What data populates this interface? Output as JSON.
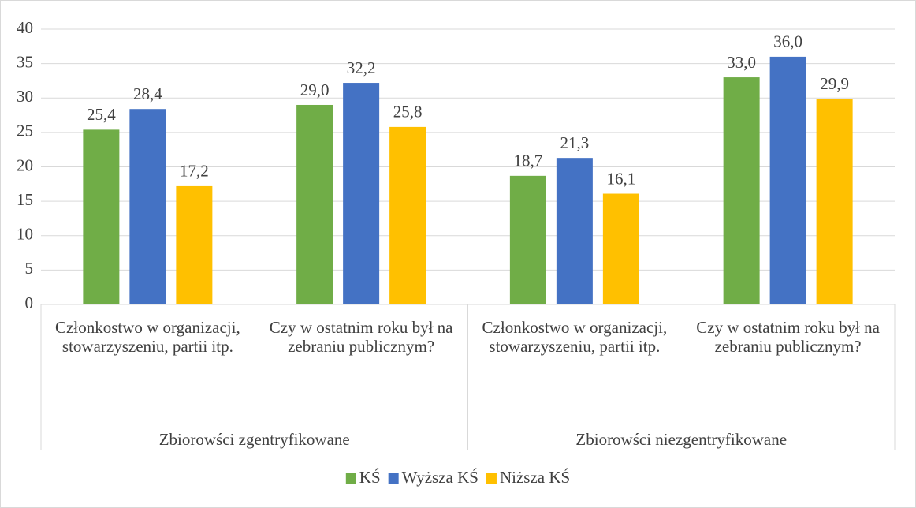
{
  "chart_data": {
    "type": "bar",
    "categories": [
      "Członkostwo w organizacji, stowarzyszeniu, partii itp.",
      "Czy w ostatnim roku był na zebraniu publicznym?",
      "Członkostwo w organizacji, stowarzyszeniu, partii itp.",
      "Czy w ostatnim roku był na zebraniu publicznym?"
    ],
    "groups": [
      "Zbiorowści zgentryfikowane",
      "Zbiorowści niezgentryfikowane"
    ],
    "series": [
      {
        "name": "KŚ",
        "color": "#70ad47",
        "values": [
          25.4,
          29.0,
          18.7,
          33.0
        ],
        "value_labels": [
          "25,4",
          "29,0",
          "18,7",
          "33,0"
        ]
      },
      {
        "name": "Wyższa KŚ",
        "color": "#4472c4",
        "values": [
          28.4,
          32.2,
          21.3,
          36.0
        ],
        "value_labels": [
          "28,4",
          "32,2",
          "21,3",
          "36,0"
        ]
      },
      {
        "name": "Niższa KŚ",
        "color": "#ffc000",
        "values": [
          17.2,
          25.8,
          16.1,
          29.9
        ],
        "value_labels": [
          "17,2",
          "25,8",
          "16,1",
          "29,9"
        ]
      }
    ],
    "ylim": [
      0,
      40
    ],
    "yticks": [
      0,
      5,
      10,
      15,
      20,
      25,
      30,
      35,
      40
    ],
    "grid": true,
    "legend": "bottom"
  }
}
